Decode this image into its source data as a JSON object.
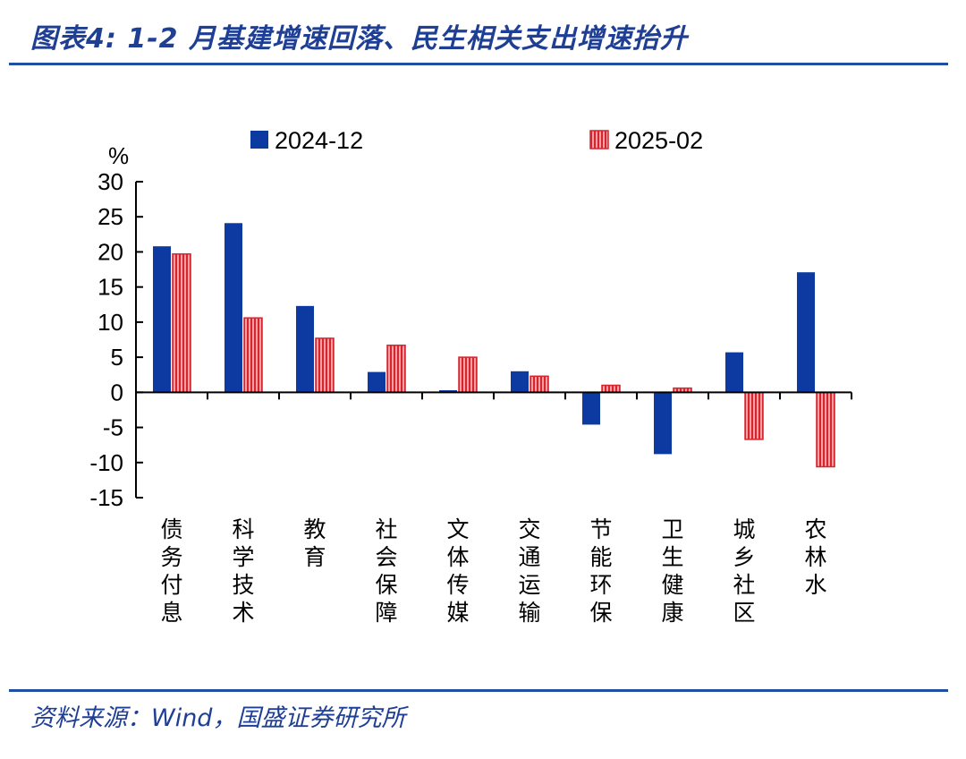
{
  "figure_title": "图表4:  1-2 月基建增速回落、民生相关支出增速抬升",
  "source_note": "资料来源：Wind，国盛证券研究所",
  "colors": {
    "accent": "#1f4fa0",
    "series_2024": "#0d3aa0",
    "series_2025": "#d8242c"
  },
  "chart_data": {
    "type": "bar",
    "title": "",
    "xlabel": "",
    "ylabel": "%",
    "ylim": [
      -15,
      30
    ],
    "yticks": [
      30,
      25,
      20,
      15,
      10,
      5,
      0,
      -5,
      -10,
      -15
    ],
    "legend_position": "top",
    "grid": false,
    "categories": [
      "债务付息",
      "科学技术",
      "教育",
      "社会保障",
      "文体传媒",
      "交通运输",
      "节能环保",
      "卫生健康",
      "城乡社区",
      "农林水"
    ],
    "series": [
      {
        "name": "2024-12",
        "color": "#0d3aa0",
        "pattern": "solid",
        "values": [
          20.8,
          24.1,
          12.3,
          2.9,
          0.3,
          3.0,
          -4.6,
          -8.8,
          5.7,
          17.1
        ]
      },
      {
        "name": "2025-02",
        "color": "#d8242c",
        "pattern": "striped",
        "values": [
          19.7,
          10.6,
          7.7,
          6.7,
          5.0,
          2.3,
          1.0,
          0.6,
          -6.7,
          -10.6
        ]
      }
    ]
  }
}
